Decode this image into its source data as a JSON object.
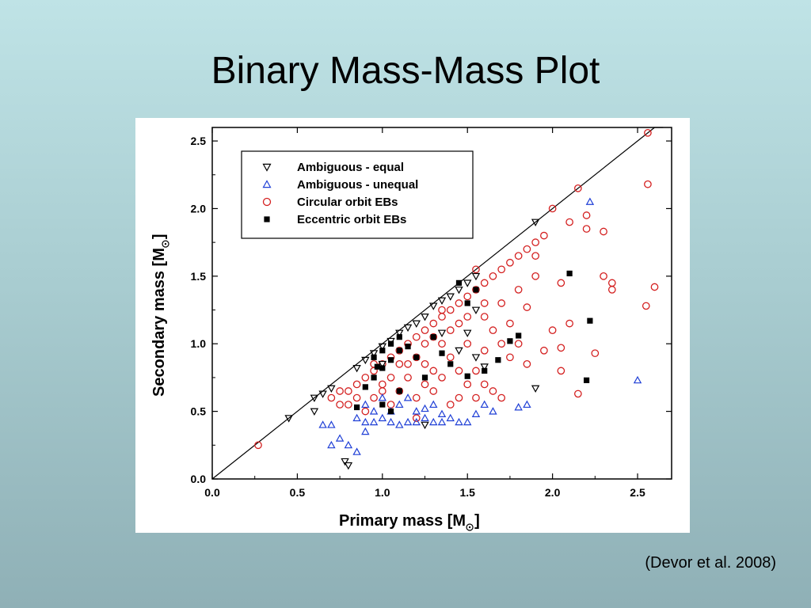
{
  "slide": {
    "title": "Binary Mass-Mass Plot",
    "citation": "(Devor et al. 2008)"
  },
  "chart_data": {
    "type": "scatter",
    "xlabel": "Primary mass  [M",
    "ylabel": "Secondary mass  [M",
    "label_suffix": "]",
    "xlim": [
      0.0,
      2.7
    ],
    "ylim": [
      0.0,
      2.6
    ],
    "x_ticks": [
      "0.0",
      "0.5",
      "1.0",
      "1.5",
      "2.0",
      "2.5"
    ],
    "y_ticks": [
      "0.0",
      "0.5",
      "1.0",
      "1.5",
      "2.0",
      "2.5"
    ],
    "x_tick_values": [
      0.0,
      0.5,
      1.0,
      1.5,
      2.0,
      2.5
    ],
    "y_tick_values": [
      0.0,
      0.5,
      1.0,
      1.5,
      2.0,
      2.5
    ],
    "reference_line": "equal mass (y = x)",
    "legend_position": "top-left",
    "grid": false,
    "colors": {
      "black": "#000000",
      "blue": "#1f3fd6",
      "red": "#d42020"
    },
    "series": [
      {
        "name": "Ambiguous - equal",
        "marker": "triangle-down",
        "color": "#000000",
        "points": [
          [
            0.45,
            0.45
          ],
          [
            0.6,
            0.5
          ],
          [
            0.6,
            0.6
          ],
          [
            0.65,
            0.63
          ],
          [
            0.7,
            0.67
          ],
          [
            0.78,
            0.13
          ],
          [
            0.8,
            0.1
          ],
          [
            0.85,
            0.82
          ],
          [
            0.9,
            0.88
          ],
          [
            0.95,
            0.93
          ],
          [
            1.0,
            0.98
          ],
          [
            1.05,
            1.02
          ],
          [
            1.1,
            1.08
          ],
          [
            1.15,
            1.12
          ],
          [
            1.2,
            1.15
          ],
          [
            1.25,
            1.2
          ],
          [
            1.3,
            1.28
          ],
          [
            1.35,
            1.32
          ],
          [
            1.4,
            1.35
          ],
          [
            1.45,
            1.4
          ],
          [
            1.5,
            1.45
          ],
          [
            1.55,
            1.5
          ],
          [
            1.25,
            0.4
          ],
          [
            1.5,
            1.08
          ],
          [
            1.55,
            0.9
          ],
          [
            1.45,
            0.95
          ],
          [
            1.55,
            1.25
          ],
          [
            1.9,
            0.67
          ],
          [
            1.6,
            0.83
          ],
          [
            1.9,
            1.9
          ],
          [
            1.35,
            1.08
          ],
          [
            1.0,
            0.85
          ]
        ]
      },
      {
        "name": "Ambiguous - unequal",
        "marker": "triangle-up",
        "color": "#1f3fd6",
        "points": [
          [
            0.65,
            0.4
          ],
          [
            0.7,
            0.4
          ],
          [
            0.7,
            0.25
          ],
          [
            0.75,
            0.3
          ],
          [
            0.8,
            0.25
          ],
          [
            0.85,
            0.2
          ],
          [
            0.85,
            0.45
          ],
          [
            0.9,
            0.42
          ],
          [
            0.9,
            0.35
          ],
          [
            0.95,
            0.42
          ],
          [
            1.0,
            0.45
          ],
          [
            1.05,
            0.42
          ],
          [
            1.1,
            0.4
          ],
          [
            1.15,
            0.42
          ],
          [
            1.2,
            0.42
          ],
          [
            1.25,
            0.45
          ],
          [
            1.3,
            0.42
          ],
          [
            1.35,
            0.48
          ],
          [
            1.4,
            0.45
          ],
          [
            1.45,
            0.42
          ],
          [
            1.5,
            0.42
          ],
          [
            1.55,
            0.48
          ],
          [
            1.6,
            0.55
          ],
          [
            1.65,
            0.5
          ],
          [
            1.8,
            0.53
          ],
          [
            1.85,
            0.55
          ],
          [
            2.22,
            2.05
          ],
          [
            2.5,
            0.73
          ],
          [
            1.0,
            0.6
          ],
          [
            1.1,
            0.55
          ],
          [
            1.2,
            0.5
          ],
          [
            0.95,
            0.5
          ],
          [
            1.05,
            0.5
          ],
          [
            1.3,
            0.55
          ],
          [
            1.15,
            0.6
          ],
          [
            0.9,
            0.55
          ],
          [
            1.25,
            0.52
          ],
          [
            1.35,
            0.42
          ]
        ]
      },
      {
        "name": "Circular orbit EBs",
        "marker": "circle",
        "color": "#d42020",
        "points": [
          [
            0.27,
            0.25
          ],
          [
            0.7,
            0.6
          ],
          [
            0.75,
            0.55
          ],
          [
            0.8,
            0.65
          ],
          [
            0.85,
            0.7
          ],
          [
            0.9,
            0.75
          ],
          [
            0.95,
            0.8
          ],
          [
            1.0,
            0.85
          ],
          [
            1.05,
            0.9
          ],
          [
            1.1,
            0.95
          ],
          [
            1.15,
            1.0
          ],
          [
            1.2,
            1.05
          ],
          [
            1.25,
            1.1
          ],
          [
            1.3,
            1.15
          ],
          [
            1.35,
            1.2
          ],
          [
            1.4,
            1.25
          ],
          [
            1.45,
            1.3
          ],
          [
            1.5,
            1.35
          ],
          [
            1.55,
            1.4
          ],
          [
            1.6,
            1.45
          ],
          [
            1.65,
            1.5
          ],
          [
            1.7,
            1.55
          ],
          [
            1.75,
            1.6
          ],
          [
            1.8,
            1.65
          ],
          [
            1.85,
            1.7
          ],
          [
            1.9,
            1.75
          ],
          [
            1.95,
            1.8
          ],
          [
            2.0,
            2.0
          ],
          [
            2.1,
            1.9
          ],
          [
            2.15,
            2.15
          ],
          [
            2.2,
            1.85
          ],
          [
            2.3,
            1.83
          ],
          [
            2.35,
            1.45
          ],
          [
            2.35,
            1.4
          ],
          [
            2.55,
            1.28
          ],
          [
            2.6,
            1.42
          ],
          [
            2.56,
            2.56
          ],
          [
            2.56,
            2.18
          ],
          [
            2.25,
            0.93
          ],
          [
            2.15,
            0.63
          ],
          [
            2.05,
            0.8
          ],
          [
            2.05,
            0.97
          ],
          [
            2.0,
            1.1
          ],
          [
            1.9,
            1.65
          ],
          [
            1.9,
            1.5
          ],
          [
            1.85,
            1.27
          ],
          [
            1.8,
            1.0
          ],
          [
            1.75,
            0.9
          ],
          [
            1.7,
            1.3
          ],
          [
            1.65,
            1.1
          ],
          [
            1.6,
            0.95
          ],
          [
            1.55,
            0.8
          ],
          [
            1.5,
            0.7
          ],
          [
            1.45,
            0.6
          ],
          [
            1.4,
            0.9
          ],
          [
            1.35,
            1.0
          ],
          [
            1.3,
            0.8
          ],
          [
            1.25,
            0.7
          ],
          [
            1.2,
            0.6
          ],
          [
            1.15,
            0.75
          ],
          [
            1.1,
            0.65
          ],
          [
            1.05,
            0.55
          ],
          [
            1.0,
            0.7
          ],
          [
            0.95,
            0.6
          ],
          [
            0.9,
            0.5
          ],
          [
            1.2,
            0.9
          ],
          [
            1.3,
            1.05
          ],
          [
            1.4,
            1.1
          ],
          [
            1.5,
            1.2
          ],
          [
            1.6,
            1.3
          ],
          [
            1.7,
            1.0
          ],
          [
            1.75,
            1.15
          ],
          [
            1.8,
            1.4
          ],
          [
            1.65,
            0.65
          ],
          [
            1.6,
            0.7
          ],
          [
            1.55,
            0.6
          ],
          [
            1.35,
            0.75
          ],
          [
            1.45,
            0.8
          ],
          [
            1.25,
            0.85
          ],
          [
            1.15,
            0.85
          ],
          [
            1.05,
            0.75
          ],
          [
            1.0,
            0.65
          ],
          [
            0.85,
            0.6
          ],
          [
            0.8,
            0.55
          ],
          [
            0.75,
            0.65
          ],
          [
            1.7,
            0.6
          ],
          [
            1.85,
            0.85
          ],
          [
            1.95,
            0.95
          ],
          [
            2.1,
            1.15
          ],
          [
            2.3,
            1.5
          ],
          [
            2.2,
            1.95
          ],
          [
            2.05,
            1.45
          ],
          [
            1.4,
            0.55
          ],
          [
            1.2,
            0.45
          ],
          [
            1.3,
            0.65
          ],
          [
            1.5,
            1.0
          ],
          [
            1.6,
            1.2
          ],
          [
            1.45,
            1.15
          ],
          [
            1.35,
            1.25
          ],
          [
            1.25,
            1.0
          ],
          [
            1.1,
            0.85
          ],
          [
            0.95,
            0.85
          ],
          [
            1.55,
            1.55
          ]
        ]
      },
      {
        "name": "Eccentric orbit EBs",
        "marker": "square",
        "color": "#000000",
        "points": [
          [
            0.85,
            0.53
          ],
          [
            0.9,
            0.68
          ],
          [
            0.95,
            0.75
          ],
          [
            0.95,
            0.9
          ],
          [
            1.0,
            0.95
          ],
          [
            1.0,
            0.82
          ],
          [
            1.05,
            1.0
          ],
          [
            1.05,
            0.88
          ],
          [
            1.1,
            1.05
          ],
          [
            1.1,
            0.95
          ],
          [
            1.15,
            0.98
          ],
          [
            1.2,
            0.9
          ],
          [
            1.25,
            0.75
          ],
          [
            1.3,
            1.05
          ],
          [
            1.35,
            0.93
          ],
          [
            1.4,
            0.85
          ],
          [
            1.45,
            1.45
          ],
          [
            1.5,
            1.3
          ],
          [
            1.55,
            1.4
          ],
          [
            1.6,
            0.8
          ],
          [
            1.68,
            0.88
          ],
          [
            1.75,
            1.02
          ],
          [
            1.8,
            1.06
          ],
          [
            2.1,
            1.52
          ],
          [
            2.2,
            0.73
          ],
          [
            2.22,
            1.17
          ],
          [
            1.05,
            0.5
          ],
          [
            1.1,
            0.65
          ],
          [
            1.0,
            0.55
          ],
          [
            1.5,
            0.76
          ],
          [
            0.97,
            0.83
          ]
        ]
      }
    ]
  }
}
